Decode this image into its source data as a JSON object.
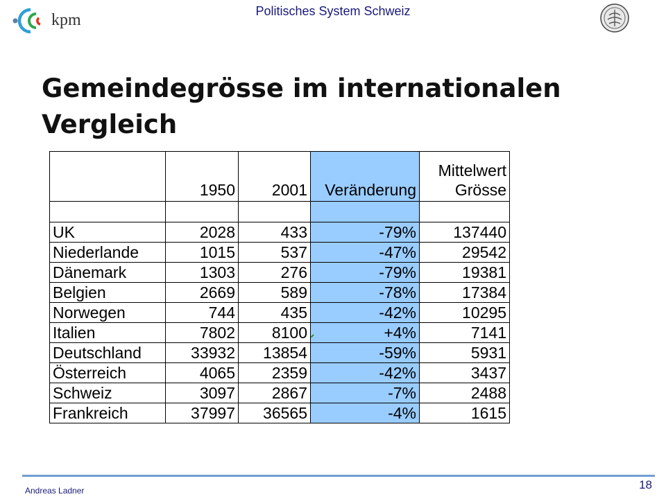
{
  "header": {
    "logo_text": "kpm",
    "title": "Politisches System Schweiz"
  },
  "slide": {
    "title_line1": "Gemeindegrösse im internationalen",
    "title_line2": "Vergleich"
  },
  "table": {
    "headers": [
      "",
      "1950",
      "2001",
      "Veränderung",
      "Mittelwert Grösse"
    ],
    "header_lines": {
      "col4_line1": "Mittelwert",
      "col4_line2": "Grösse"
    },
    "rows": [
      {
        "country": "UK",
        "y1950": "2028",
        "y2001": "433",
        "change": "-79%",
        "mean": "137440"
      },
      {
        "country": "Niederlande",
        "y1950": "1015",
        "y2001": "537",
        "change": "-47%",
        "mean": "29542"
      },
      {
        "country": "Dänemark",
        "y1950": "1303",
        "y2001": "276",
        "change": "-79%",
        "mean": "19381"
      },
      {
        "country": "Belgien",
        "y1950": "2669",
        "y2001": "589",
        "change": "-78%",
        "mean": "17384"
      },
      {
        "country": "Norwegen",
        "y1950": "744",
        "y2001": "435",
        "change": "-42%",
        "mean": "10295"
      },
      {
        "country": "Italien",
        "y1950": "7802",
        "y2001": "8100",
        "change": "+4%",
        "mean": "7141"
      },
      {
        "country": "Deutschland",
        "y1950": "33932",
        "y2001": "13854",
        "change": "-59%",
        "mean": "5931"
      },
      {
        "country": "Österreich",
        "y1950": "4065",
        "y2001": "2359",
        "change": "-42%",
        "mean": "3437"
      },
      {
        "country": "Schweiz",
        "y1950": "3097",
        "y2001": "2867",
        "change": "-7%",
        "mean": "2488"
      },
      {
        "country": "Frankreich",
        "y1950": "37997",
        "y2001": "36565",
        "change": "-4%",
        "mean": "1615"
      }
    ]
  },
  "footer": {
    "author": "Andreas Ladner",
    "page_number": "18"
  },
  "colors": {
    "highlight_column": "#99ccff",
    "footer_line": "#6f9fd3",
    "header_text": "#1a1a7a"
  }
}
